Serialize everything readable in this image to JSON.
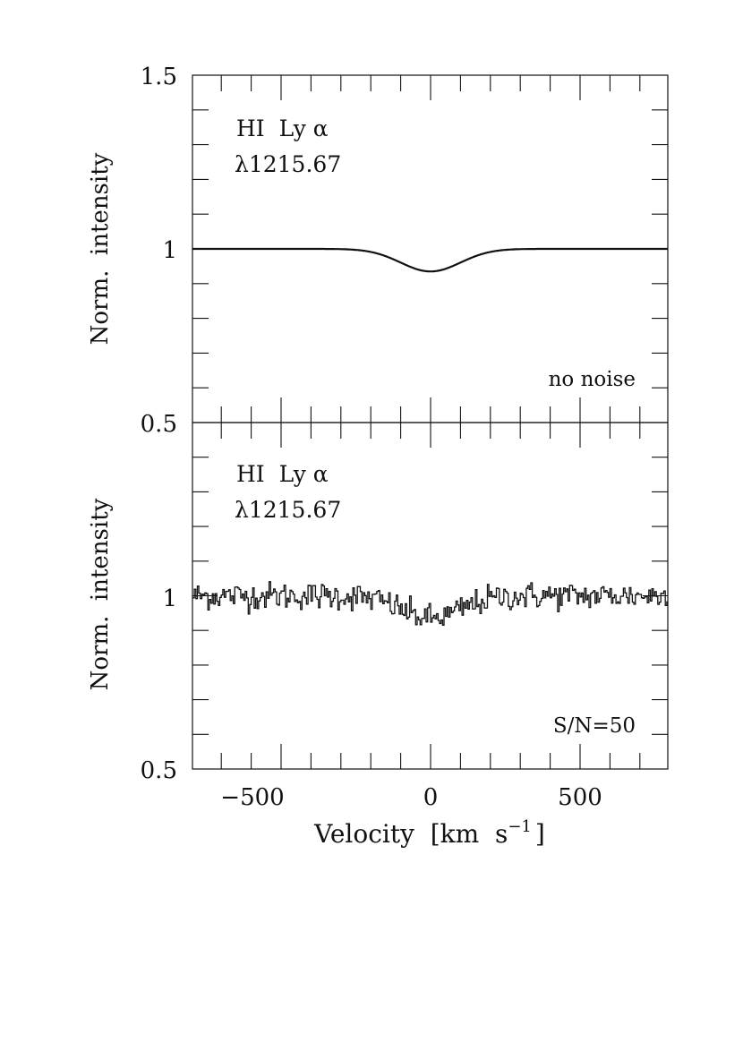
{
  "chart_data": [
    {
      "type": "line",
      "panel": "top",
      "title": "",
      "annotation_line1": "HI  Ly α",
      "annotation_line2": "λ1215.67",
      "corner_label": "no noise",
      "ylabel": "Norm.  intensity",
      "xlabel": "",
      "xlim": [
        -800,
        800
      ],
      "ylim": [
        0.5,
        1.5
      ],
      "yticks": [
        {
          "value": 1.5,
          "label": "1.5"
        },
        {
          "value": 1.0,
          "label": "1"
        },
        {
          "value": 0.5,
          "label": "0.5"
        }
      ],
      "line_profile": {
        "continuum": 1.0,
        "depth": 0.065,
        "center": 0,
        "sigma": 100
      },
      "noise_snr": null
    },
    {
      "type": "line",
      "panel": "bottom",
      "title": "",
      "annotation_line1": "HI  Ly α",
      "annotation_line2": "λ1215.67",
      "corner_label": "S/N=50",
      "ylabel": "Norm.  intensity",
      "xlabel": "Velocity  [km  s",
      "xlabel_superscript": "−1",
      "xlabel_close": "]",
      "xlim": [
        -800,
        800
      ],
      "ylim": [
        0.5,
        1.5
      ],
      "yticks": [
        {
          "value": 1.0,
          "label": "1"
        },
        {
          "value": 0.5,
          "label": "0.5"
        }
      ],
      "xticks": [
        {
          "value": -500,
          "label": "−500"
        },
        {
          "value": 0,
          "label": "0"
        },
        {
          "value": 500,
          "label": "500"
        }
      ],
      "line_profile": {
        "continuum": 1.0,
        "depth": 0.065,
        "center": 0,
        "sigma": 100
      },
      "noise_snr": 50
    }
  ],
  "colors": {
    "ink": "#111111",
    "background": "#ffffff"
  }
}
